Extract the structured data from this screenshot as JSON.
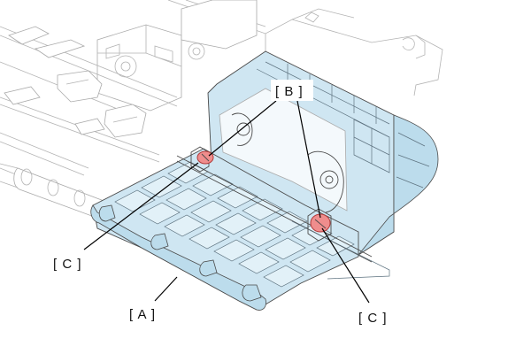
{
  "labels": {
    "part_a": "[ A ]",
    "part_b": "[ B ]",
    "part_c_left": "[ C ]",
    "part_c_right": "[ C ]"
  },
  "colors": {
    "part_highlight": "#cfe6f2",
    "part_highlight_dark": "#bcdcec",
    "screw_highlight": "#ef8d8d",
    "outline": "#4a4a4a",
    "background_lines": "#b3b3b3"
  }
}
